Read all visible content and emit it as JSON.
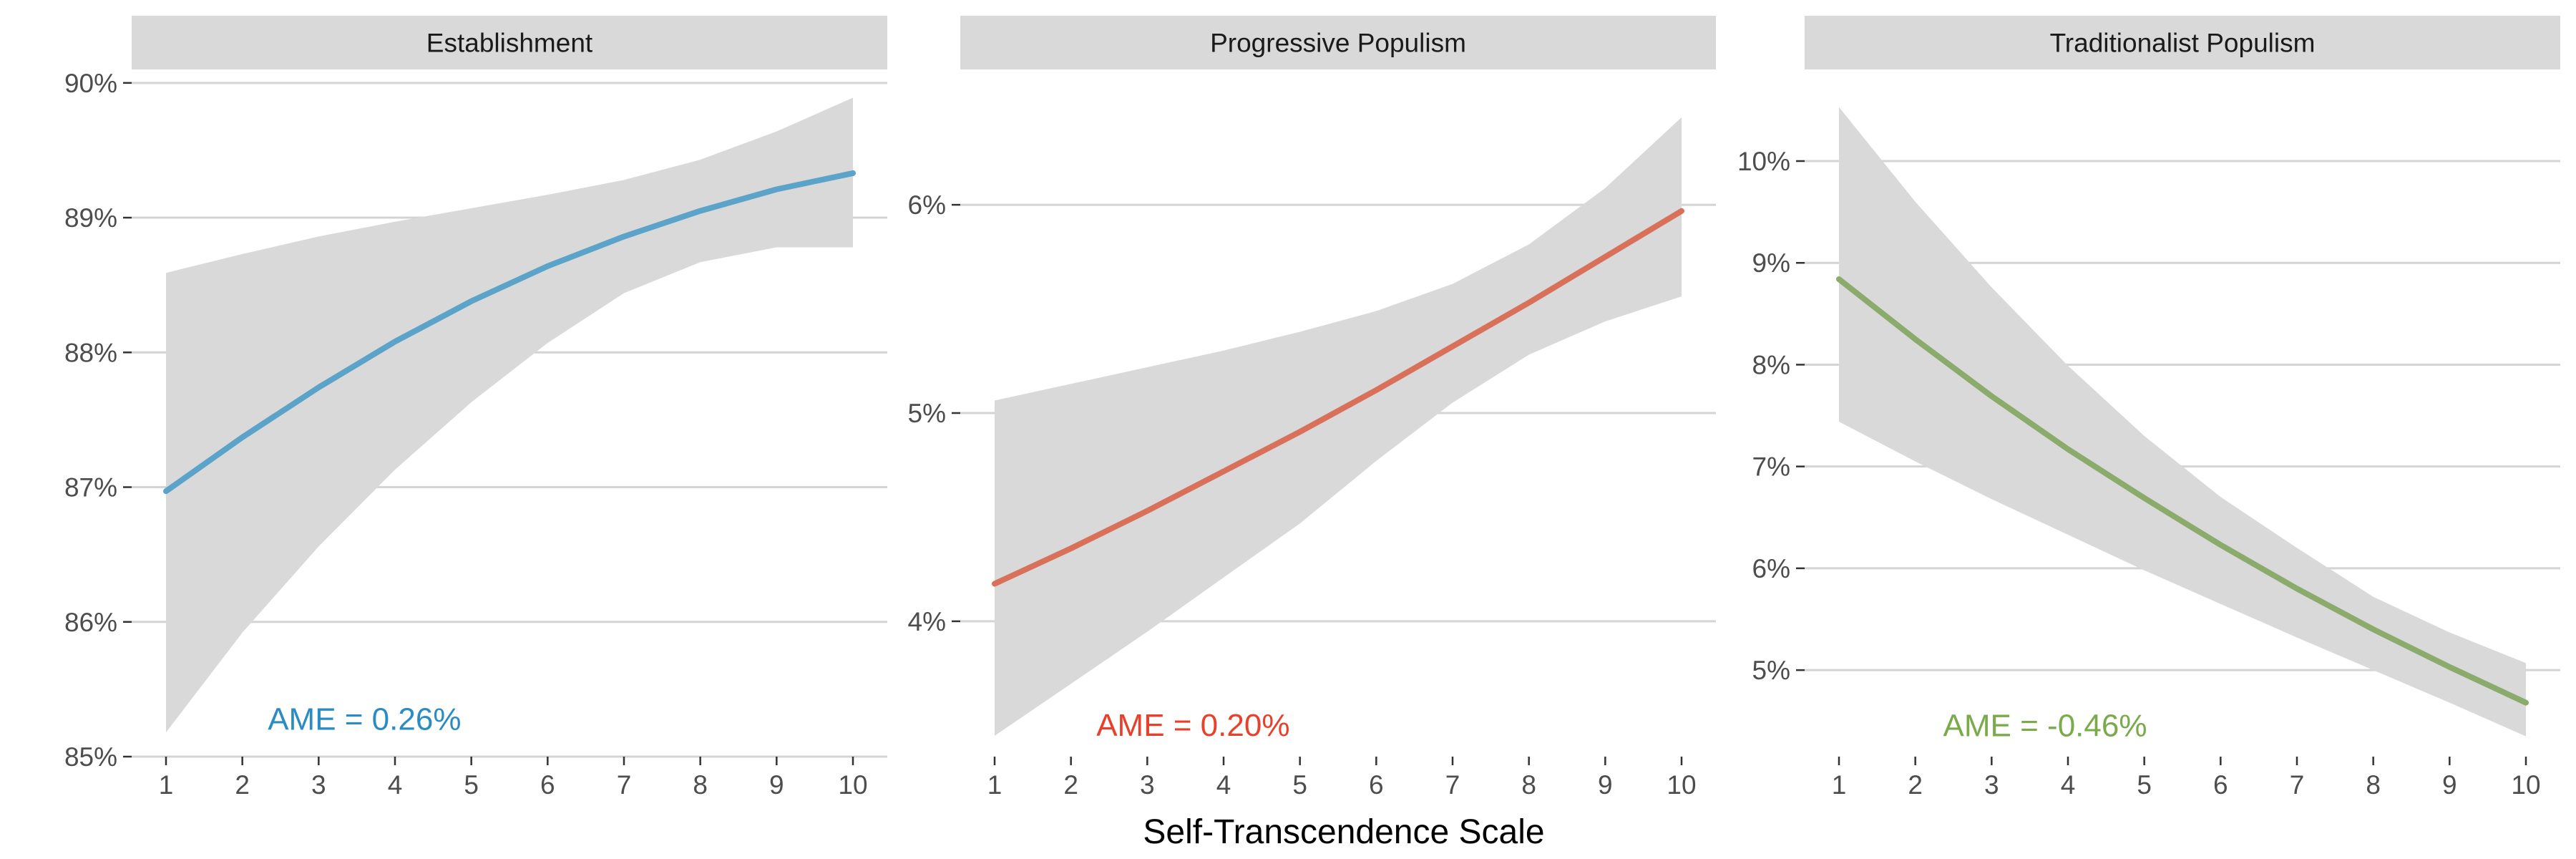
{
  "chart_data": {
    "type": "line",
    "xlabel": "Self-Transcendence Scale",
    "ylabel": "",
    "x": [
      1,
      2,
      3,
      4,
      5,
      6,
      7,
      8,
      9,
      10
    ],
    "x_ticks": [
      "1",
      "2",
      "3",
      "4",
      "5",
      "6",
      "7",
      "8",
      "9",
      "10"
    ],
    "xlim": [
      0.55,
      10.45
    ],
    "grid": "horizontal major gridlines",
    "facets": [
      {
        "title": "Establishment",
        "color": "#5ba3c9",
        "band_color": "#d9d9d9",
        "annotation": "AME = 0.26%",
        "annotation_color": "#2b8cc4",
        "annotation_x": 3.6,
        "annotation_y": 85.2,
        "ylim": [
          85.0,
          90.1
        ],
        "y_ticks": [
          85,
          86,
          87,
          88,
          89,
          90
        ],
        "y_tick_labels": [
          "85%",
          "86%",
          "87%",
          "88%",
          "89%",
          "90%"
        ],
        "series": [
          {
            "name": "Establishment",
            "values": [
              86.97,
              87.37,
              87.74,
              88.08,
              88.38,
              88.64,
              88.86,
              89.05,
              89.21,
              89.33
            ],
            "lower": [
              85.18,
              85.92,
              86.56,
              87.13,
              87.63,
              88.07,
              88.44,
              88.67,
              88.78,
              88.78
            ],
            "upper": [
              88.59,
              88.73,
              88.86,
              88.97,
              89.07,
              89.17,
              89.28,
              89.43,
              89.64,
              89.89
            ]
          }
        ]
      },
      {
        "title": "Progressive Populism",
        "color": "#d9705a",
        "band_color": "#d9d9d9",
        "annotation": "AME = 0.20%",
        "annotation_color": "#e8402a",
        "annotation_x": 3.6,
        "annotation_y": 3.45,
        "ylim": [
          3.35,
          6.65
        ],
        "y_ticks": [
          4,
          5,
          6
        ],
        "y_tick_labels": [
          "4%",
          "5%",
          "6%"
        ],
        "series": [
          {
            "name": "Progressive Populism",
            "values": [
              4.18,
              4.35,
              4.53,
              4.72,
              4.91,
              5.11,
              5.32,
              5.53,
              5.75,
              5.97
            ],
            "lower": [
              3.45,
              3.7,
              3.95,
              4.21,
              4.47,
              4.77,
              5.05,
              5.28,
              5.44,
              5.56
            ],
            "upper": [
              5.06,
              5.14,
              5.22,
              5.3,
              5.39,
              5.49,
              5.62,
              5.81,
              6.08,
              6.42
            ]
          }
        ]
      },
      {
        "title": "Traditionalist Populism",
        "color": "#8aab6b",
        "band_color": "#d9d9d9",
        "annotation": "AME = -0.46%",
        "annotation_color": "#7aaa4a",
        "annotation_x": 3.7,
        "annotation_y": 4.35,
        "ylim": [
          4.15,
          10.9
        ],
        "y_ticks": [
          5,
          6,
          7,
          8,
          9,
          10
        ],
        "y_tick_labels": [
          "5%",
          "6%",
          "7%",
          "8%",
          "9%",
          "10%"
        ],
        "series": [
          {
            "name": "Traditionalist Populism",
            "values": [
              8.84,
              8.25,
              7.69,
              7.17,
              6.69,
              6.23,
              5.8,
              5.4,
              5.03,
              4.68
            ],
            "lower": [
              7.44,
              7.05,
              6.68,
              6.33,
              5.98,
              5.65,
              5.32,
              5.0,
              4.68,
              4.35
            ],
            "upper": [
              10.53,
              9.6,
              8.76,
              7.99,
              7.3,
              6.7,
              6.2,
              5.72,
              5.37,
              5.07
            ]
          }
        ]
      }
    ]
  }
}
